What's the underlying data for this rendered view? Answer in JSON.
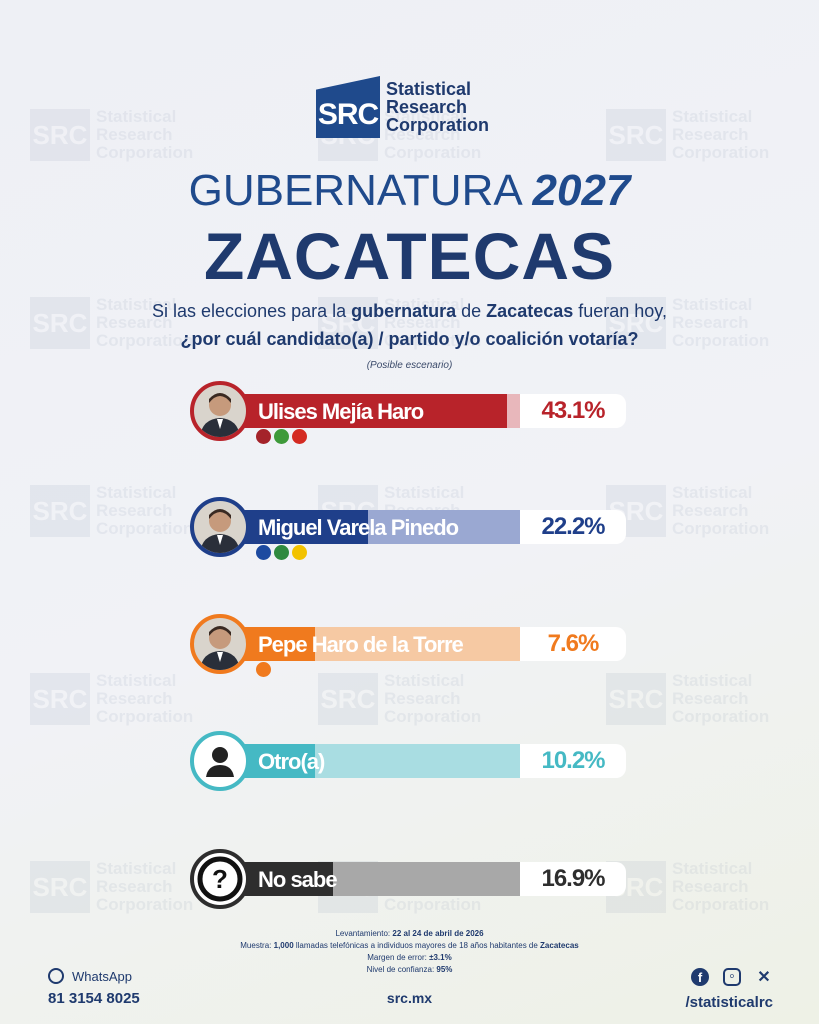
{
  "brand": {
    "logo_abbr": "SRC",
    "logo_line1": "Statistical",
    "logo_line2": "Research",
    "logo_line3": "Corporation"
  },
  "title": {
    "line1_word": "GUBERNATURA",
    "line1_year": "2027",
    "line2": "ZACATECAS"
  },
  "question": {
    "part1": "Si las elecciones para la ",
    "bold1": "gubernatura",
    "part2": " de ",
    "bold2": "Zacatecas",
    "part3": " fueran hoy,",
    "line2": "¿por cuál candidato(a) / partido y/o coalición votaría?",
    "note": "(Posible escenario)"
  },
  "chart_data": {
    "type": "bar",
    "categories": [
      "Ulises Mejía Haro",
      "Miguel Varela Pinedo",
      "Pepe Haro de la Torre",
      "Otro(a)",
      "No sabe"
    ],
    "values": [
      43.1,
      22.2,
      7.6,
      10.2,
      16.9
    ],
    "value_labels": [
      "43.1%",
      "22.2%",
      "7.6%",
      "10.2%",
      "16.9%"
    ],
    "colors": [
      "#b8232a",
      "#1f3f8a",
      "#f07a1e",
      "#45b9c4",
      "#2e2e2e"
    ],
    "track_colors": [
      "#e8b7bb",
      "#9aa8d2",
      "#f6c9a3",
      "#a9dde2",
      "#a8a8a8"
    ],
    "party_logos": [
      [
        "morena",
        "pvem",
        "PT"
      ],
      [
        "PAN",
        "PRI",
        "PRD"
      ],
      [
        "MC"
      ],
      [],
      []
    ],
    "icons": [
      "candidate-photo",
      "candidate-photo",
      "candidate-photo",
      "person-icon",
      "question-icon"
    ]
  },
  "meta": {
    "levantamiento_label": "Levantamiento:",
    "levantamiento": "22 al 24 de abril de 2026",
    "muestra_label": "Muestra:",
    "muestra_n": "1,000",
    "muestra_text": " llamadas telefónicas a individuos mayores de 18 años habitantes de ",
    "muestra_place": "Zacatecas",
    "margen_label": "Margen de error:",
    "margen": "±3.1%",
    "confianza_label": "Nivel de confianza:",
    "confianza": "95%"
  },
  "footer": {
    "whatsapp_label": "WhatsApp",
    "phone": "81 3154 8025",
    "site": "src.mx",
    "handle": "/statisticalrc",
    "social_icons": [
      "facebook-icon",
      "instagram-icon",
      "x-icon"
    ]
  }
}
